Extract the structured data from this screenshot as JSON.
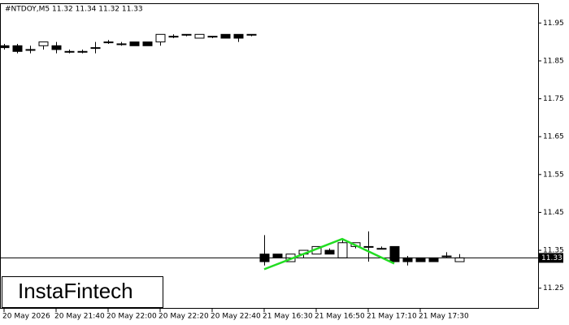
{
  "chart_data": {
    "type": "candlestick",
    "title": "#NTDOY,M5  11.32 11.34 11.32 11.33",
    "brand": "InstaFintech",
    "categories": [
      "20 May 2026",
      null,
      null,
      null,
      "20 May 21:40",
      null,
      null,
      null,
      "20 May 22:00",
      null,
      null,
      null,
      "20 May 22:20",
      null,
      null,
      null,
      "20 May 22:40",
      null,
      null,
      null,
      "21 May 16:30",
      null,
      null,
      null,
      "21 May 16:50",
      null,
      null,
      null,
      "21 May 17:10",
      null,
      null,
      null,
      "21 May 17:30",
      null,
      null,
      null
    ],
    "open": [
      11.89,
      11.89,
      11.88,
      11.89,
      11.89,
      11.875,
      11.875,
      11.885,
      11.9,
      11.895,
      11.9,
      11.9,
      11.9,
      11.915,
      11.92,
      11.91,
      11.915,
      11.92,
      11.92,
      11.92,
      11.34,
      11.34,
      11.32,
      11.34,
      11.34,
      11.35,
      11.33,
      11.36,
      11.36,
      11.355,
      11.36,
      11.33,
      11.33,
      11.33,
      11.335,
      11.32
    ],
    "high": [
      11.895,
      11.895,
      11.89,
      11.9,
      11.9,
      11.88,
      11.88,
      11.9,
      11.905,
      11.9,
      11.9,
      11.9,
      11.92,
      11.92,
      11.92,
      11.92,
      11.915,
      11.92,
      11.92,
      11.92,
      11.39,
      11.34,
      11.34,
      11.345,
      11.36,
      11.355,
      11.38,
      11.37,
      11.4,
      11.36,
      11.36,
      11.335,
      11.33,
      11.33,
      11.345,
      11.34
    ],
    "low": [
      11.88,
      11.87,
      11.87,
      11.88,
      11.87,
      11.87,
      11.87,
      11.87,
      11.895,
      11.89,
      11.89,
      11.89,
      11.89,
      11.91,
      11.915,
      11.91,
      11.91,
      11.91,
      11.9,
      11.915,
      11.31,
      11.33,
      11.32,
      11.33,
      11.34,
      11.34,
      11.33,
      11.355,
      11.32,
      11.355,
      11.32,
      11.31,
      11.32,
      11.32,
      11.33,
      11.32
    ],
    "close": [
      11.885,
      11.875,
      11.88,
      11.9,
      11.88,
      11.875,
      11.875,
      11.885,
      11.9,
      11.895,
      11.89,
      11.89,
      11.92,
      11.915,
      11.92,
      11.92,
      11.915,
      11.91,
      11.91,
      11.92,
      11.32,
      11.33,
      11.34,
      11.35,
      11.36,
      11.34,
      11.37,
      11.37,
      11.36,
      11.355,
      11.32,
      11.32,
      11.32,
      11.32,
      11.335,
      11.33
    ],
    "last_price": 11.33,
    "last_price_label": "11.33",
    "pattern": {
      "color": "#22dd22",
      "x": [
        20,
        26,
        30
      ],
      "values": [
        11.3,
        11.38,
        11.315
      ]
    },
    "ylim": [
      11.2,
      12.0
    ],
    "yticks": [
      11.25,
      11.35,
      11.45,
      11.55,
      11.65,
      11.75,
      11.85,
      11.95
    ],
    "bull_color": "#ffffff",
    "bear_color": "#000000"
  }
}
